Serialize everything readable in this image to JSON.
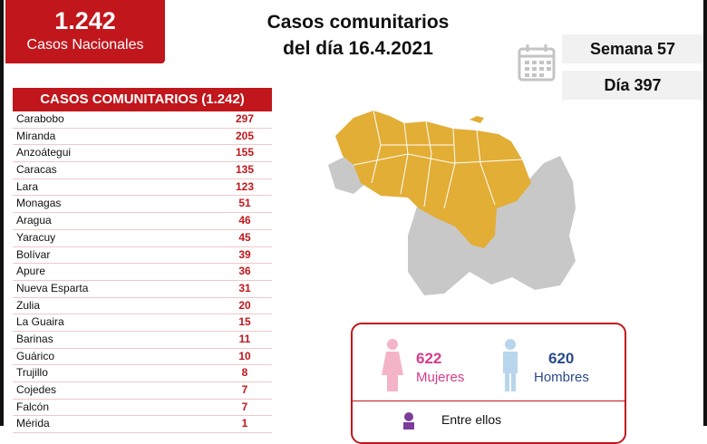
{
  "header": {
    "total": "1.242",
    "total_label": "Casos Nacionales",
    "title_line1": "Casos comunitarios",
    "title_line2": "del día 16.4.2021",
    "week": "Semana 57",
    "day": "Día 397"
  },
  "table": {
    "title": "CASOS COMUNITARIOS (1.242)",
    "rows": [
      {
        "state": "Carabobo",
        "value": "297"
      },
      {
        "state": "Miranda",
        "value": "205"
      },
      {
        "state": "Anzoátegui",
        "value": "155"
      },
      {
        "state": "Caracas",
        "value": "135"
      },
      {
        "state": "Lara",
        "value": "123"
      },
      {
        "state": "Monagas",
        "value": "51"
      },
      {
        "state": "Aragua",
        "value": "46"
      },
      {
        "state": "Yaracuy",
        "value": "45"
      },
      {
        "state": "Bolívar",
        "value": "39"
      },
      {
        "state": "Apure",
        "value": "36"
      },
      {
        "state": "Nueva Esparta",
        "value": "31"
      },
      {
        "state": "Zulia",
        "value": "20"
      },
      {
        "state": "La Guaira",
        "value": "15"
      },
      {
        "state": "Barinas",
        "value": "11"
      },
      {
        "state": "Guárico",
        "value": "10"
      },
      {
        "state": "Trujillo",
        "value": "8"
      },
      {
        "state": "Cojedes",
        "value": "7"
      },
      {
        "state": "Falcón",
        "value": "7"
      },
      {
        "state": "Mérida",
        "value": "1"
      }
    ]
  },
  "gender": {
    "women_count": "622",
    "women_label": "Mujeres",
    "men_count": "620",
    "men_label": "Hombres",
    "among_label": "Entre ellos"
  },
  "colors": {
    "brand_red": "#c0161c",
    "map_affected": "#e2ae36",
    "map_unaffected": "#c8c8c8",
    "women": "#d53c8c",
    "men": "#2b4a8b"
  }
}
